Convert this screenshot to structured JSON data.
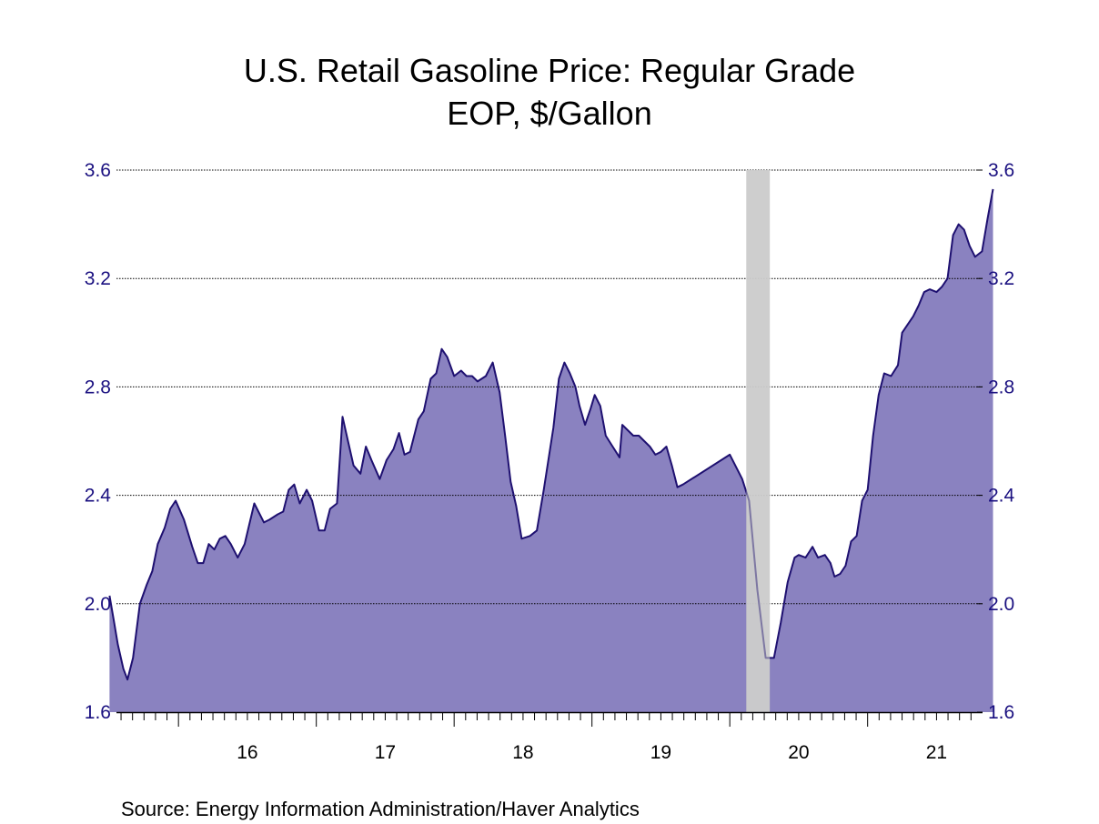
{
  "chart_data": {
    "type": "area",
    "title": "U.S. Retail Gasoline Price: Regular Grade",
    "subtitle": "EOP, $/Gallon",
    "source": "Source:  Energy Information Administration/Haver Analytics",
    "y_range": [
      1.6,
      3.6
    ],
    "y_ticks": [
      "1.6",
      "2.0",
      "2.4",
      "2.8",
      "3.2",
      "3.6"
    ],
    "x_range": [
      2015.5,
      2021.8
    ],
    "x_labels": [
      {
        "label": "16",
        "year": 2016
      },
      {
        "label": "17",
        "year": 2017
      },
      {
        "label": "18",
        "year": 2018
      },
      {
        "label": "19",
        "year": 2019
      },
      {
        "label": "20",
        "year": 2020
      },
      {
        "label": "21",
        "year": 2021
      }
    ],
    "grid": "horizontal dotted",
    "recession_band": {
      "start": 2020.12,
      "end": 2020.29
    },
    "colors": {
      "fill": "#8a82c0",
      "line": "#1e1070",
      "axis_text": "#1a1080",
      "recession": "#cccccc"
    },
    "series": [
      {
        "points": [
          [
            2015.5,
            2.03
          ],
          [
            2015.53,
            1.94
          ],
          [
            2015.56,
            1.85
          ],
          [
            2015.6,
            1.76
          ],
          [
            2015.63,
            1.72
          ],
          [
            2015.67,
            1.8
          ],
          [
            2015.72,
            2.0
          ],
          [
            2015.77,
            2.07
          ],
          [
            2015.81,
            2.12
          ],
          [
            2015.85,
            2.22
          ],
          [
            2015.9,
            2.28
          ],
          [
            2015.94,
            2.35
          ],
          [
            2015.98,
            2.38
          ],
          [
            2016.04,
            2.31
          ],
          [
            2016.1,
            2.21
          ],
          [
            2016.14,
            2.15
          ],
          [
            2016.18,
            2.15
          ],
          [
            2016.22,
            2.22
          ],
          [
            2016.26,
            2.2
          ],
          [
            2016.3,
            2.24
          ],
          [
            2016.34,
            2.25
          ],
          [
            2016.38,
            2.22
          ],
          [
            2016.43,
            2.17
          ],
          [
            2016.48,
            2.22
          ],
          [
            2016.55,
            2.37
          ],
          [
            2016.62,
            2.3
          ],
          [
            2016.66,
            2.31
          ],
          [
            2016.72,
            2.33
          ],
          [
            2016.76,
            2.34
          ],
          [
            2016.8,
            2.42
          ],
          [
            2016.84,
            2.44
          ],
          [
            2016.88,
            2.37
          ],
          [
            2016.93,
            2.42
          ],
          [
            2016.97,
            2.38
          ],
          [
            2017.02,
            2.27
          ],
          [
            2017.06,
            2.27
          ],
          [
            2017.1,
            2.35
          ],
          [
            2017.15,
            2.37
          ],
          [
            2017.19,
            2.69
          ],
          [
            2017.23,
            2.6
          ],
          [
            2017.27,
            2.51
          ],
          [
            2017.32,
            2.48
          ],
          [
            2017.36,
            2.58
          ],
          [
            2017.4,
            2.53
          ],
          [
            2017.46,
            2.46
          ],
          [
            2017.51,
            2.53
          ],
          [
            2017.56,
            2.57
          ],
          [
            2017.6,
            2.63
          ],
          [
            2017.64,
            2.55
          ],
          [
            2017.68,
            2.56
          ],
          [
            2017.74,
            2.68
          ],
          [
            2017.78,
            2.71
          ],
          [
            2017.83,
            2.83
          ],
          [
            2017.87,
            2.85
          ],
          [
            2017.91,
            2.94
          ],
          [
            2017.95,
            2.91
          ],
          [
            2018.0,
            2.84
          ],
          [
            2018.05,
            2.86
          ],
          [
            2018.09,
            2.84
          ],
          [
            2018.13,
            2.84
          ],
          [
            2018.17,
            2.82
          ],
          [
            2018.23,
            2.84
          ],
          [
            2018.28,
            2.89
          ],
          [
            2018.33,
            2.78
          ],
          [
            2018.37,
            2.62
          ],
          [
            2018.41,
            2.45
          ],
          [
            2018.45,
            2.36
          ],
          [
            2018.49,
            2.24
          ],
          [
            2018.55,
            2.25
          ],
          [
            2018.6,
            2.27
          ],
          [
            2018.65,
            2.42
          ],
          [
            2018.72,
            2.65
          ],
          [
            2018.76,
            2.83
          ],
          [
            2018.8,
            2.89
          ],
          [
            2018.84,
            2.85
          ],
          [
            2018.88,
            2.8
          ],
          [
            2018.91,
            2.73
          ],
          [
            2018.95,
            2.66
          ],
          [
            2018.99,
            2.72
          ],
          [
            2019.02,
            2.77
          ],
          [
            2019.06,
            2.73
          ],
          [
            2019.1,
            2.62
          ],
          [
            2019.15,
            2.58
          ],
          [
            2019.2,
            2.54
          ],
          [
            2019.22,
            2.66
          ],
          [
            2019.26,
            2.64
          ],
          [
            2019.3,
            2.62
          ],
          [
            2019.34,
            2.62
          ],
          [
            2019.38,
            2.6
          ],
          [
            2019.42,
            2.58
          ],
          [
            2019.46,
            2.55
          ],
          [
            2019.5,
            2.56
          ],
          [
            2019.54,
            2.58
          ],
          [
            2019.58,
            2.51
          ],
          [
            2019.62,
            2.43
          ],
          [
            2019.66,
            2.44
          ],
          [
            2020.0,
            2.55
          ],
          [
            2020.09,
            2.46
          ],
          [
            2020.14,
            2.38
          ],
          [
            2020.2,
            2.05
          ],
          [
            2020.26,
            1.8
          ],
          [
            2020.32,
            1.8
          ],
          [
            2020.37,
            1.93
          ],
          [
            2020.42,
            2.08
          ],
          [
            2020.47,
            2.17
          ],
          [
            2020.5,
            2.18
          ],
          [
            2020.55,
            2.17
          ],
          [
            2020.6,
            2.21
          ],
          [
            2020.64,
            2.17
          ],
          [
            2020.69,
            2.18
          ],
          [
            2020.73,
            2.15
          ],
          [
            2020.76,
            2.1
          ],
          [
            2020.8,
            2.11
          ],
          [
            2020.84,
            2.14
          ],
          [
            2020.88,
            2.23
          ],
          [
            2020.92,
            2.25
          ],
          [
            2020.96,
            2.38
          ],
          [
            2021.0,
            2.42
          ],
          [
            2021.04,
            2.62
          ],
          [
            2021.08,
            2.77
          ],
          [
            2021.12,
            2.85
          ],
          [
            2021.17,
            2.84
          ],
          [
            2021.22,
            2.88
          ],
          [
            2021.25,
            3.0
          ],
          [
            2021.29,
            3.03
          ],
          [
            2021.33,
            3.06
          ],
          [
            2021.37,
            3.1
          ],
          [
            2021.41,
            3.15
          ],
          [
            2021.45,
            3.16
          ],
          [
            2021.5,
            3.15
          ],
          [
            2021.54,
            3.17
          ],
          [
            2021.58,
            3.2
          ],
          [
            2021.62,
            3.36
          ],
          [
            2021.66,
            3.4
          ],
          [
            2021.7,
            3.38
          ],
          [
            2021.74,
            3.32
          ],
          [
            2021.78,
            3.28
          ],
          [
            2021.83,
            3.3
          ],
          [
            2021.87,
            3.42
          ],
          [
            2021.91,
            3.53
          ]
        ]
      }
    ]
  }
}
